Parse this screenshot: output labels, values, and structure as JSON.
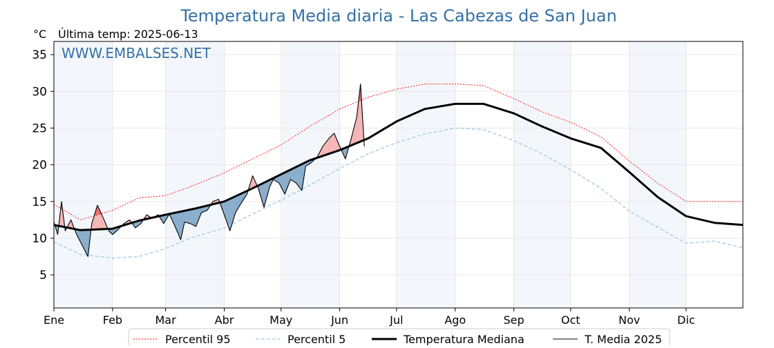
{
  "chart_data": {
    "type": "line",
    "title": "Temperatura Media diaria - Las Cabezas de San Juan",
    "unit_label": "°C",
    "subtitle": "Última temp: 2025-06-13",
    "watermark": "WWW.EMBALSES.NET",
    "xlim": [
      1,
      365
    ],
    "ylim": [
      0.5,
      36.8
    ],
    "y_ticks": [
      5,
      10,
      15,
      20,
      25,
      30,
      35
    ],
    "months": [
      {
        "label": "Ene",
        "start": 1
      },
      {
        "label": "Feb",
        "start": 32
      },
      {
        "label": "Mar",
        "start": 60
      },
      {
        "label": "Abr",
        "start": 91
      },
      {
        "label": "May",
        "start": 121
      },
      {
        "label": "Jun",
        "start": 152
      },
      {
        "label": "Jul",
        "start": 182
      },
      {
        "label": "Ago",
        "start": 213
      },
      {
        "label": "Sep",
        "start": 244
      },
      {
        "label": "Oct",
        "start": 274
      },
      {
        "label": "Nov",
        "start": 305
      },
      {
        "label": "Dic",
        "start": 335
      }
    ],
    "grid": true,
    "legend_position": "bottom",
    "colors": {
      "p95": "#ff0000",
      "p5": "#9ecae1",
      "median": "#000000",
      "current": "#000000",
      "above_fill": "#f4b6b6",
      "above_strong_fill": "#ee7070",
      "below_fill": "#8aaecc",
      "month_band": "#f3f7fc",
      "title": "#3471a7"
    },
    "series": [
      {
        "name": "Percentil 95",
        "key": "p95",
        "style": "dotted-thin",
        "points": [
          [
            1,
            14.6
          ],
          [
            15,
            12.5
          ],
          [
            32,
            13.8
          ],
          [
            46,
            15.5
          ],
          [
            60,
            15.8
          ],
          [
            75,
            17.2
          ],
          [
            91,
            18.9
          ],
          [
            106,
            20.8
          ],
          [
            121,
            22.7
          ],
          [
            136,
            25.2
          ],
          [
            152,
            27.6
          ],
          [
            167,
            29.2
          ],
          [
            182,
            30.3
          ],
          [
            197,
            31.0
          ],
          [
            213,
            31.0
          ],
          [
            228,
            30.8
          ],
          [
            244,
            29.0
          ],
          [
            259,
            27.2
          ],
          [
            274,
            25.8
          ],
          [
            290,
            23.8
          ],
          [
            305,
            20.5
          ],
          [
            320,
            17.5
          ],
          [
            335,
            15.0
          ],
          [
            350,
            15.0
          ],
          [
            365,
            15.0
          ]
        ]
      },
      {
        "name": "Percentil 5",
        "key": "p5",
        "style": "dashed",
        "points": [
          [
            1,
            9.5
          ],
          [
            15,
            7.8
          ],
          [
            32,
            7.3
          ],
          [
            46,
            7.5
          ],
          [
            60,
            8.6
          ],
          [
            75,
            10.2
          ],
          [
            91,
            11.4
          ],
          [
            106,
            13.3
          ],
          [
            121,
            15.2
          ],
          [
            136,
            17.2
          ],
          [
            152,
            19.5
          ],
          [
            167,
            21.5
          ],
          [
            182,
            23.0
          ],
          [
            197,
            24.2
          ],
          [
            213,
            25.0
          ],
          [
            228,
            24.8
          ],
          [
            244,
            23.3
          ],
          [
            259,
            21.5
          ],
          [
            274,
            19.3
          ],
          [
            290,
            16.8
          ],
          [
            305,
            13.7
          ],
          [
            320,
            11.5
          ],
          [
            335,
            9.3
          ],
          [
            350,
            9.6
          ],
          [
            365,
            8.7
          ]
        ]
      },
      {
        "name": "Temperatura Mediana",
        "key": "median",
        "style": "thick",
        "points": [
          [
            1,
            11.8
          ],
          [
            15,
            11.1
          ],
          [
            32,
            11.3
          ],
          [
            46,
            12.4
          ],
          [
            60,
            13.2
          ],
          [
            75,
            14.0
          ],
          [
            91,
            15.0
          ],
          [
            106,
            16.8
          ],
          [
            121,
            18.7
          ],
          [
            136,
            20.6
          ],
          [
            152,
            22.0
          ],
          [
            167,
            23.6
          ],
          [
            182,
            25.9
          ],
          [
            197,
            27.6
          ],
          [
            213,
            28.3
          ],
          [
            228,
            28.3
          ],
          [
            244,
            27.0
          ],
          [
            259,
            25.2
          ],
          [
            274,
            23.6
          ],
          [
            290,
            22.3
          ],
          [
            305,
            19.0
          ],
          [
            320,
            15.6
          ],
          [
            335,
            13.0
          ],
          [
            350,
            12.1
          ],
          [
            365,
            11.8
          ]
        ]
      },
      {
        "name": "T. Media 2025",
        "key": "current",
        "style": "thin",
        "points": [
          [
            1,
            12.2
          ],
          [
            3,
            10.5
          ],
          [
            5,
            15.0
          ],
          [
            7,
            11.0
          ],
          [
            10,
            12.5
          ],
          [
            13,
            10.5
          ],
          [
            17,
            8.5
          ],
          [
            19,
            7.5
          ],
          [
            21,
            12.0
          ],
          [
            24,
            14.5
          ],
          [
            27,
            12.8
          ],
          [
            30,
            11.0
          ],
          [
            32,
            10.5
          ],
          [
            35,
            11.2
          ],
          [
            38,
            12.0
          ],
          [
            41,
            12.5
          ],
          [
            44,
            11.4
          ],
          [
            47,
            12.0
          ],
          [
            50,
            13.2
          ],
          [
            53,
            12.7
          ],
          [
            56,
            13.2
          ],
          [
            59,
            12.0
          ],
          [
            62,
            13.3
          ],
          [
            65,
            11.6
          ],
          [
            68,
            9.8
          ],
          [
            70,
            12.2
          ],
          [
            73,
            12.0
          ],
          [
            76,
            11.6
          ],
          [
            79,
            13.5
          ],
          [
            82,
            13.8
          ],
          [
            85,
            15.0
          ],
          [
            88,
            15.3
          ],
          [
            91,
            13.2
          ],
          [
            94,
            11.0
          ],
          [
            97,
            13.5
          ],
          [
            100,
            14.8
          ],
          [
            103,
            16.0
          ],
          [
            106,
            18.5
          ],
          [
            109,
            16.8
          ],
          [
            112,
            14.2
          ],
          [
            115,
            17.0
          ],
          [
            117,
            18.0
          ],
          [
            120,
            17.5
          ],
          [
            123,
            16.0
          ],
          [
            126,
            18.0
          ],
          [
            129,
            17.5
          ],
          [
            132,
            16.5
          ],
          [
            134,
            19.8
          ],
          [
            137,
            20.3
          ],
          [
            140,
            21.0
          ],
          [
            143,
            22.5
          ],
          [
            146,
            23.5
          ],
          [
            149,
            24.3
          ],
          [
            152,
            22.5
          ],
          [
            155,
            20.8
          ],
          [
            158,
            23.5
          ],
          [
            161,
            26.5
          ],
          [
            163,
            31.0
          ],
          [
            165,
            22.5
          ]
        ]
      }
    ]
  },
  "legend": [
    {
      "label": "Percentil 95",
      "key": "p95"
    },
    {
      "label": "Percentil 5",
      "key": "p5"
    },
    {
      "label": "Temperatura Mediana",
      "key": "median"
    },
    {
      "label": "T. Media 2025",
      "key": "current"
    }
  ]
}
